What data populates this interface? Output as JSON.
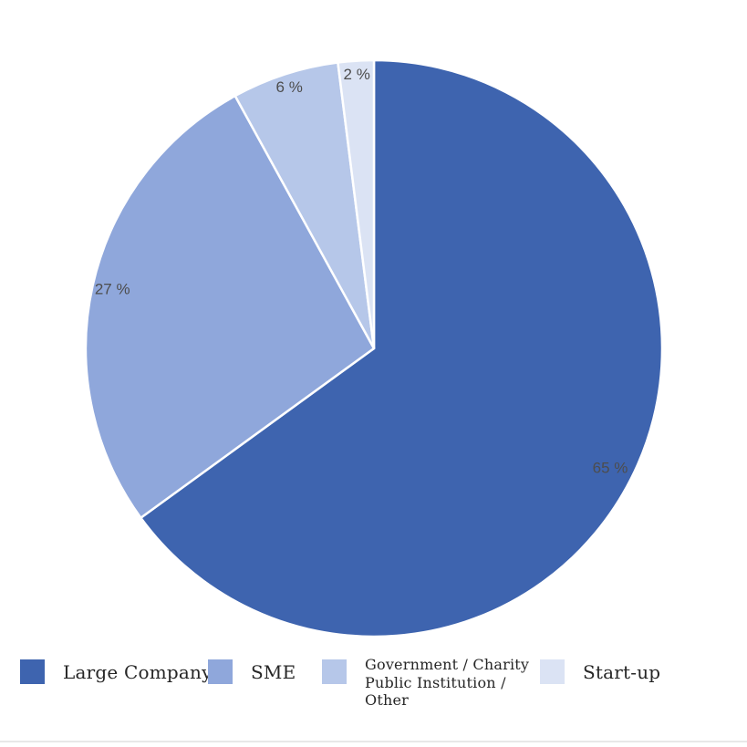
{
  "chart_data": {
    "type": "pie",
    "title": "",
    "categories": [
      "Large Company",
      "SME",
      "Government / Charity Public Institution / Other",
      "Start-up"
    ],
    "values": [
      65,
      27,
      6,
      2
    ],
    "slice_labels": [
      "65 %",
      "27 %",
      "6 %",
      "2 %"
    ],
    "colors": [
      "#3E64AF",
      "#8FA7DB",
      "#B6C7E9",
      "#DBE3F4"
    ],
    "slice_label_color": "#4d4d4d",
    "slice_border_color": "#ffffff",
    "start_angle_deg": 0,
    "direction": "clockwise",
    "legend_position": "bottom",
    "background": "#ffffff"
  },
  "legend": {
    "items": [
      {
        "label": "Large Company",
        "color": "#3E64AF"
      },
      {
        "label": "SME",
        "color": "#8FA7DB"
      },
      {
        "label": "Government / Charity\nPublic Institution /\nOther",
        "color": "#B6C7E9"
      },
      {
        "label": "Start-up",
        "color": "#DBE3F4"
      }
    ]
  },
  "footer": {
    "divider_color": "#e8e8e8"
  }
}
